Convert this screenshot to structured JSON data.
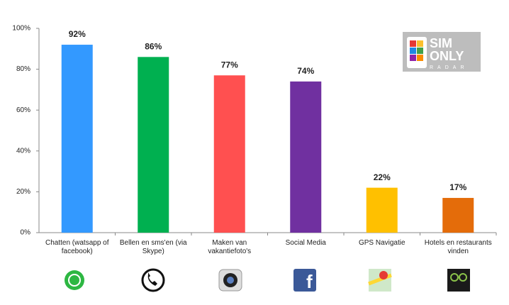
{
  "chart_data": {
    "type": "bar",
    "categories": [
      "Chatten (watsapp of facebook)",
      "Bellen en sms'en (via Skype)",
      "Maken van vakantiefoto's",
      "Social Media",
      "GPS Navigatie",
      "Hotels en restaurants vinden"
    ],
    "values": [
      92,
      86,
      77,
      74,
      22,
      17
    ],
    "value_labels": [
      "92%",
      "86%",
      "77%",
      "74%",
      "22%",
      "17%"
    ],
    "colors": [
      "#3399ff",
      "#00b050",
      "#ff5050",
      "#7030a0",
      "#ffc000",
      "#e46c0a"
    ],
    "ylim": [
      0,
      100
    ],
    "yticks": [
      {
        "value": 0,
        "label": "0%"
      },
      {
        "value": 20,
        "label": "20%"
      },
      {
        "value": 40,
        "label": "40%"
      },
      {
        "value": 60,
        "label": "60%"
      },
      {
        "value": 80,
        "label": "80%"
      },
      {
        "value": 100,
        "label": "100%"
      }
    ],
    "grid": false
  },
  "logo": {
    "line1": "SIM",
    "line2": "ONLY",
    "line3": "RADAR"
  }
}
